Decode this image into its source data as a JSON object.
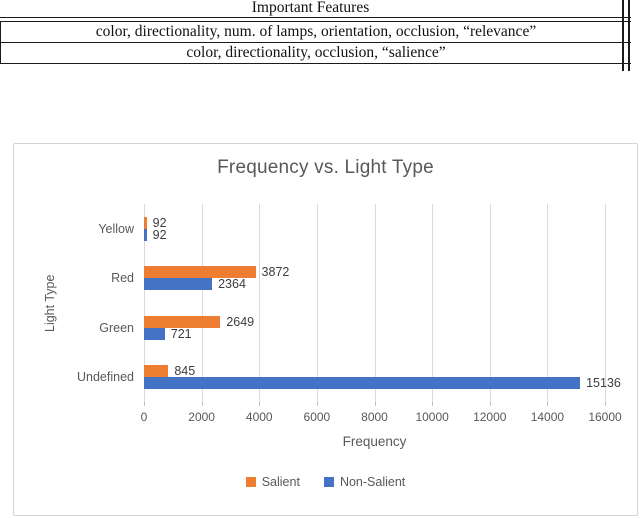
{
  "table": {
    "header": "Important Features",
    "rows": [
      "color, directionality, num. of lamps, orientation, occlusion, “relevance”",
      "color, directionality, occlusion, “salience”"
    ]
  },
  "chart_data": {
    "type": "bar",
    "orientation": "horizontal",
    "title": "Frequency vs. Light Type",
    "xlabel": "Frequency",
    "ylabel": "Light Type",
    "categories": [
      "Yellow",
      "Red",
      "Green",
      "Undefined"
    ],
    "series": [
      {
        "name": "Salient",
        "color": "#ED7D31",
        "values": [
          92,
          3872,
          2649,
          845
        ]
      },
      {
        "name": "Non-Salient",
        "color": "#4472C4",
        "values": [
          92,
          2364,
          721,
          15136
        ]
      }
    ],
    "xlim": [
      0,
      16000
    ],
    "xticks": [
      0,
      2000,
      4000,
      6000,
      8000,
      10000,
      12000,
      14000,
      16000
    ],
    "grid": true,
    "legend_position": "bottom",
    "colors": {
      "gridline": "#d9d9d9",
      "axis_text": "#595959",
      "data_label": "#3d3d3d"
    }
  }
}
